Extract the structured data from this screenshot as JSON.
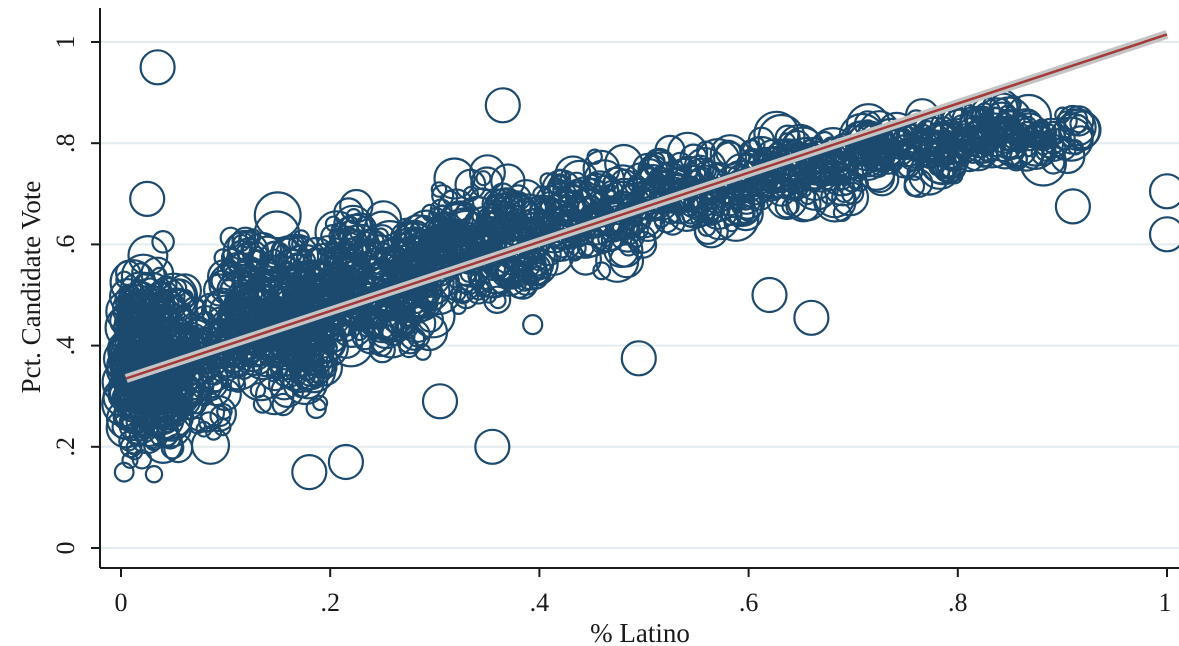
{
  "chart_data": {
    "type": "scatter",
    "title": "",
    "xlabel": "% Latino",
    "ylabel": "Pct. Candidate Vote",
    "xlim": [
      0,
      1
    ],
    "ylim": [
      0,
      1
    ],
    "x_ticks": [
      {
        "value": 0,
        "label": "0"
      },
      {
        "value": 0.2,
        "label": ".2"
      },
      {
        "value": 0.4,
        "label": ".4"
      },
      {
        "value": 0.6,
        "label": ".6"
      },
      {
        "value": 0.8,
        "label": ".8"
      },
      {
        "value": 1,
        "label": "1"
      }
    ],
    "y_ticks": [
      {
        "value": 0,
        "label": "0"
      },
      {
        "value": 0.2,
        "label": ".2"
      },
      {
        "value": 0.4,
        "label": ".4"
      },
      {
        "value": 0.6,
        "label": ".6"
      },
      {
        "value": 0.8,
        "label": ".8"
      },
      {
        "value": 1,
        "label": "1"
      }
    ],
    "grid": "horizontal",
    "legend": "none",
    "colors": {
      "markers": "#1c4a6e",
      "fit_line": "#a33a3a",
      "confidence_band": "#c4c4c4",
      "grid": "#e3ecee"
    },
    "marker_style": "hollow circles sized by weight",
    "fit_line": {
      "x": [
        0.005,
        1.0
      ],
      "y": [
        0.335,
        1.015
      ]
    },
    "notable_points": [
      {
        "x": 0.035,
        "y": 0.95
      },
      {
        "x": 0.025,
        "y": 0.69
      },
      {
        "x": 1.0,
        "y": 0.705
      },
      {
        "x": 1.0,
        "y": 0.62
      },
      {
        "x": 0.91,
        "y": 0.675
      },
      {
        "x": 0.66,
        "y": 0.455
      },
      {
        "x": 0.62,
        "y": 0.5
      },
      {
        "x": 0.495,
        "y": 0.375
      },
      {
        "x": 0.355,
        "y": 0.2
      },
      {
        "x": 0.18,
        "y": 0.15
      },
      {
        "x": 0.215,
        "y": 0.17
      },
      {
        "x": 0.305,
        "y": 0.29
      },
      {
        "x": 0.365,
        "y": 0.875
      }
    ],
    "point_clusters": [
      {
        "x_range": [
          0.0,
          0.1
        ],
        "y_center": 0.37,
        "y_spread": 0.22,
        "count": 520
      },
      {
        "x_range": [
          0.1,
          0.2
        ],
        "y_center": 0.46,
        "y_spread": 0.2,
        "count": 430
      },
      {
        "x_range": [
          0.2,
          0.3
        ],
        "y_center": 0.53,
        "y_spread": 0.17,
        "count": 320
      },
      {
        "x_range": [
          0.3,
          0.4
        ],
        "y_center": 0.6,
        "y_spread": 0.15,
        "count": 230
      },
      {
        "x_range": [
          0.4,
          0.5
        ],
        "y_center": 0.66,
        "y_spread": 0.12,
        "count": 160
      },
      {
        "x_range": [
          0.5,
          0.6
        ],
        "y_center": 0.71,
        "y_spread": 0.11,
        "count": 140
      },
      {
        "x_range": [
          0.6,
          0.7
        ],
        "y_center": 0.75,
        "y_spread": 0.1,
        "count": 140
      },
      {
        "x_range": [
          0.7,
          0.8
        ],
        "y_center": 0.79,
        "y_spread": 0.09,
        "count": 150
      },
      {
        "x_range": [
          0.8,
          0.92
        ],
        "y_center": 0.82,
        "y_spread": 0.07,
        "count": 130
      }
    ]
  }
}
